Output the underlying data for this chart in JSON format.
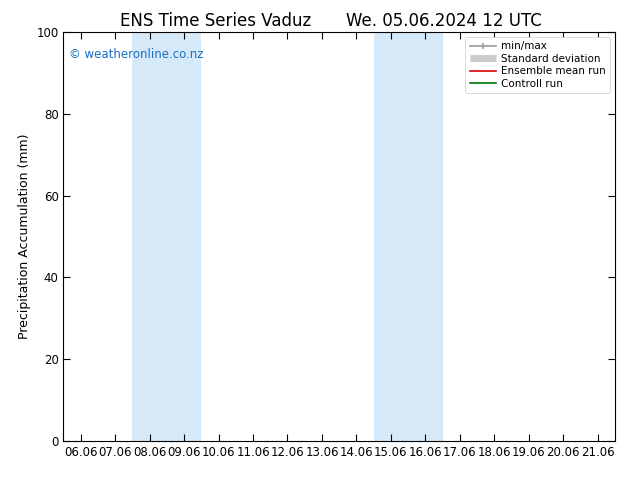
{
  "title_left": "ENS Time Series Vaduz",
  "title_right": "We. 05.06.2024 12 UTC",
  "ylabel": "Precipitation Accumulation (mm)",
  "ylim": [
    0,
    100
  ],
  "yticks": [
    0,
    20,
    40,
    60,
    80,
    100
  ],
  "x_labels": [
    "06.06",
    "07.06",
    "08.06",
    "09.06",
    "10.06",
    "11.06",
    "12.06",
    "13.06",
    "14.06",
    "15.06",
    "16.06",
    "17.06",
    "18.06",
    "19.06",
    "20.06",
    "21.06"
  ],
  "shaded_regions": [
    {
      "xstart": 2,
      "xend": 4,
      "color": "#d6e9f8"
    },
    {
      "xstart": 9,
      "xend": 11,
      "color": "#d6e9f8"
    }
  ],
  "legend_entries": [
    {
      "label": "min/max",
      "color": "#999999",
      "lw": 1.2
    },
    {
      "label": "Standard deviation",
      "color": "#cccccc",
      "lw": 5
    },
    {
      "label": "Ensemble mean run",
      "color": "#dd0000",
      "lw": 1.2
    },
    {
      "label": "Controll run",
      "color": "#007700",
      "lw": 1.2
    }
  ],
  "watermark": "© weatheronline.co.nz",
  "watermark_color": "#1a6fc4",
  "background_color": "#ffffff",
  "title_fontsize": 12,
  "axis_fontsize": 9,
  "tick_label_fontsize": 8.5
}
